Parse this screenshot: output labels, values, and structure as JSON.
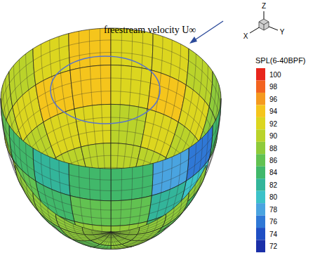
{
  "chart_data": {
    "type": "contour",
    "annotation": "freestream velocity U∞",
    "xlabel": "X",
    "ylabel": "Y",
    "zlabel": "Z",
    "grid": true,
    "cells": [
      [
        88,
        88,
        88,
        88,
        88,
        88,
        88,
        88,
        90,
        90,
        90,
        90,
        88,
        88,
        88,
        88
      ],
      [
        88,
        88,
        88,
        88,
        86,
        86,
        88,
        88,
        88,
        88,
        90,
        90,
        88,
        88,
        88,
        88
      ],
      [
        88,
        86,
        86,
        88,
        86,
        84,
        86,
        88,
        88,
        90,
        90,
        90,
        90,
        90,
        88,
        88
      ],
      [
        88,
        84,
        84,
        88,
        88,
        86,
        88,
        88,
        90,
        90,
        92,
        92,
        90,
        92,
        90,
        88
      ],
      [
        86,
        80,
        82,
        86,
        86,
        84,
        86,
        90,
        90,
        92,
        94,
        94,
        92,
        94,
        92,
        88
      ],
      [
        84,
        76,
        78,
        84,
        84,
        82,
        84,
        86,
        90,
        90,
        92,
        94,
        92,
        92,
        90,
        88
      ]
    ],
    "colorbar": {
      "label": "SPL(6-40BPF)",
      "range": [
        71,
        101
      ],
      "ticks": [
        100,
        98,
        96,
        94,
        92,
        90,
        88,
        86,
        84,
        82,
        80,
        78,
        76,
        74,
        72
      ],
      "colors": [
        "#e8261c",
        "#f3631f",
        "#f59a1f",
        "#f5c51c",
        "#dcd61f",
        "#bad32a",
        "#8fcb3a",
        "#62c251",
        "#41b86a",
        "#33b59a",
        "#3cc2c8",
        "#4aa4e0",
        "#2f78d6",
        "#1f4fc4",
        "#1a2fa8"
      ]
    }
  }
}
